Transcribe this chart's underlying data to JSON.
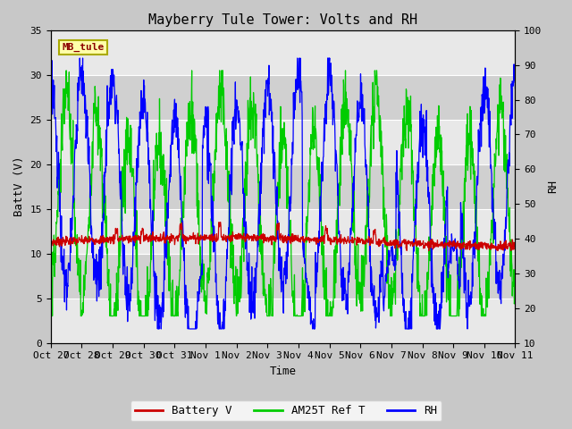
{
  "title": "Mayberry Tule Tower: Volts and RH",
  "xlabel": "Time",
  "ylabel_left": "BattV (V)",
  "ylabel_right": "RH",
  "ylim_left": [
    0,
    35
  ],
  "ylim_right": [
    10,
    100
  ],
  "yticks_left": [
    0,
    5,
    10,
    15,
    20,
    25,
    30,
    35
  ],
  "yticks_right": [
    10,
    20,
    30,
    40,
    50,
    60,
    70,
    80,
    90,
    100
  ],
  "x_labels": [
    "Oct 27",
    "Oct 28",
    "Oct 29",
    "Oct 30",
    "Oct 31",
    "Nov 1",
    "Nov 2",
    "Nov 3",
    "Nov 4",
    "Nov 5",
    "Nov 6",
    "Nov 7",
    "Nov 8",
    "Nov 9",
    "Nov 10",
    "Nov 11"
  ],
  "legend_entries": [
    "Battery V",
    "AM25T Ref T",
    "RH"
  ],
  "battery_color": "#cc0000",
  "green_color": "#00cc00",
  "blue_color": "#0000ff",
  "station_label": "MB_tule",
  "bg_color": "#c8c8c8",
  "plot_bg_color": "#d0d0d0",
  "grid_color": "#ffffff",
  "title_fontsize": 11,
  "axis_fontsize": 9,
  "tick_fontsize": 8
}
